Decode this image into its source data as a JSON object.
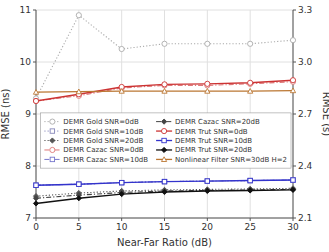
{
  "chart_data": {
    "type": "line",
    "xlabel": "Near-Far Ratio (dB)",
    "ylabel": "RMSE (ns)",
    "y2label": "RMSE (s)",
    "x": [
      0,
      5,
      10,
      15,
      20,
      25,
      30
    ],
    "xlim": [
      0,
      30
    ],
    "xticks": [
      0,
      5,
      10,
      15,
      20,
      25,
      30
    ],
    "ylim": [
      7.0,
      11.0
    ],
    "yticks": [
      7,
      8,
      9,
      10,
      11
    ],
    "y2lim": [
      2.1,
      3.3
    ],
    "y2ticks": [
      2.1,
      2.4,
      2.7,
      {
        "value": 3.0,
        "label": "3.0"
      },
      3.3
    ],
    "grid": true,
    "legend": "right",
    "series": [
      {
        "name": "DEMR Gold SNR=0dB",
        "color": "#aaaaaa",
        "line_style": "dotted",
        "marker": "circle",
        "values": [
          9.3,
          10.9,
          10.25,
          10.35,
          10.35,
          10.35,
          10.42
        ]
      },
      {
        "name": "DEMR Gold SNR=10dB",
        "color": "#8888bb",
        "line_style": "dotted",
        "marker": "square",
        "values": [
          7.63,
          7.65,
          7.68,
          7.7,
          7.71,
          7.72,
          7.73
        ]
      },
      {
        "name": "DEMR Gold SNR=20dB",
        "color": "#555555",
        "line_style": "dotted",
        "marker": "diamond",
        "values": [
          7.42,
          7.48,
          7.52,
          7.54,
          7.55,
          7.56,
          7.57
        ]
      },
      {
        "name": "DEMR Cazac SNR=0dB",
        "color": "#dd7777",
        "line_style": "dashdot",
        "marker": "circle",
        "values": [
          9.25,
          9.35,
          9.5,
          9.55,
          9.55,
          9.58,
          9.62
        ]
      },
      {
        "name": "DEMR Cazac SNR=10dB",
        "color": "#7777cc",
        "line_style": "dashdot",
        "marker": "square",
        "values": [
          7.63,
          7.65,
          7.68,
          7.7,
          7.71,
          7.72,
          7.73
        ]
      },
      {
        "name": "DEMR Cazac SNR=20dB",
        "color": "#444444",
        "line_style": "dashdot",
        "marker": "diamond",
        "values": [
          7.38,
          7.44,
          7.49,
          7.52,
          7.53,
          7.54,
          7.55
        ]
      },
      {
        "name": "DEMR Trut SNR=0dB",
        "color": "#cc3333",
        "line_style": "solid",
        "marker": "circle",
        "values": [
          9.25,
          9.38,
          9.52,
          9.57,
          9.58,
          9.6,
          9.65
        ]
      },
      {
        "name": "DEMR Trut SNR=10dB",
        "color": "#3333cc",
        "line_style": "solid",
        "marker": "square",
        "values": [
          7.63,
          7.65,
          7.68,
          7.7,
          7.71,
          7.72,
          7.73
        ]
      },
      {
        "name": "DEMR Trut SNR=20dB",
        "color": "#111111",
        "line_style": "solid",
        "marker": "diamond",
        "values": [
          7.28,
          7.38,
          7.46,
          7.5,
          7.52,
          7.53,
          7.54
        ]
      },
      {
        "name": "Nonlinear Filter SNR=30dB H=2",
        "color": "#bb7733",
        "line_style": "solid",
        "marker": "triangle",
        "values": [
          9.42,
          9.43,
          9.44,
          9.44,
          9.44,
          9.44,
          9.45
        ]
      }
    ]
  }
}
